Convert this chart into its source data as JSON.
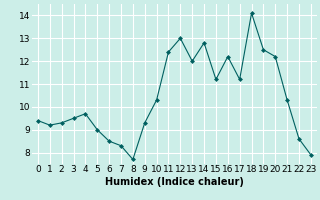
{
  "x": [
    0,
    1,
    2,
    3,
    4,
    5,
    6,
    7,
    8,
    9,
    10,
    11,
    12,
    13,
    14,
    15,
    16,
    17,
    18,
    19,
    20,
    21,
    22,
    23
  ],
  "y": [
    9.4,
    9.2,
    9.3,
    9.5,
    9.7,
    9.0,
    8.5,
    8.3,
    7.7,
    9.3,
    10.3,
    12.4,
    13.0,
    12.0,
    12.8,
    11.2,
    12.2,
    11.2,
    14.1,
    12.5,
    12.2,
    10.3,
    8.6,
    7.9
  ],
  "line_color": "#006060",
  "marker": "D",
  "marker_size": 2,
  "bg_color": "#cceee8",
  "grid_color": "#ffffff",
  "xlabel": "Humidex (Indice chaleur)",
  "xlim": [
    -0.5,
    23.5
  ],
  "ylim": [
    7.5,
    14.5
  ],
  "yticks": [
    8,
    9,
    10,
    11,
    12,
    13,
    14
  ],
  "xticks": [
    0,
    1,
    2,
    3,
    4,
    5,
    6,
    7,
    8,
    9,
    10,
    11,
    12,
    13,
    14,
    15,
    16,
    17,
    18,
    19,
    20,
    21,
    22,
    23
  ],
  "xlabel_fontsize": 7,
  "tick_fontsize": 6.5
}
